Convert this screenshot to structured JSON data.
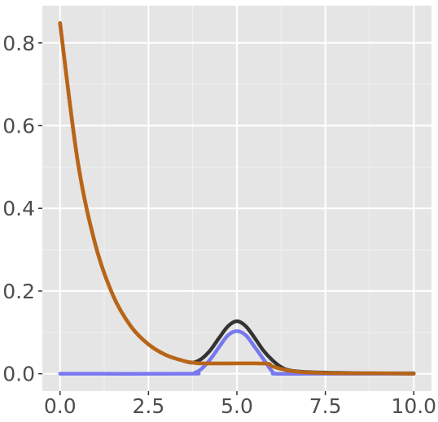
{
  "chart_data": {
    "type": "line",
    "title": "",
    "xlabel": "",
    "ylabel": "",
    "xlim": [
      -0.5,
      10.5
    ],
    "ylim": [
      -0.042,
      0.89
    ],
    "x_ticks": [
      0.0,
      2.5,
      5.0,
      7.5,
      10.0
    ],
    "x_tick_labels": [
      "0.0",
      "2.5",
      "5.0",
      "7.5",
      "10.0"
    ],
    "y_ticks": [
      0.0,
      0.2,
      0.4,
      0.6,
      0.8
    ],
    "y_tick_labels": [
      "0.0",
      "0.2",
      "0.4",
      "0.6",
      "0.8"
    ],
    "grid": true,
    "background": "#e5e5e5",
    "legend": "none",
    "series": [
      {
        "color": "#333333",
        "x": [
          0,
          0.5,
          1,
          1.5,
          2,
          2.5,
          3,
          3.5,
          3.75,
          4,
          4.25,
          4.5,
          4.75,
          5,
          5.25,
          5.5,
          5.75,
          6,
          6.25,
          6.5,
          7,
          8,
          9,
          10
        ],
        "y": [
          0.848,
          0.514,
          0.312,
          0.189,
          0.115,
          0.071,
          0.045,
          0.031,
          0.027,
          0.036,
          0.057,
          0.087,
          0.115,
          0.127,
          0.115,
          0.087,
          0.056,
          0.033,
          0.016,
          0.008,
          0.004,
          0.002,
          0.001,
          0.001
        ]
      },
      {
        "color": "#e8a040",
        "x": [
          0,
          0.5,
          1,
          1.5,
          2,
          2.5,
          3,
          3.5,
          3.75,
          4,
          5,
          5.5,
          5.9,
          6,
          6.5,
          7,
          8,
          9,
          10
        ],
        "y": [
          0.848,
          0.514,
          0.312,
          0.189,
          0.115,
          0.071,
          0.045,
          0.031,
          0.027,
          0.025,
          0.025,
          0.025,
          0.024,
          0.018,
          0.007,
          0.003,
          0.001,
          0.001,
          0.0
        ]
      },
      {
        "color": "#6e6ef0",
        "x": [
          0,
          3.6,
          3.8,
          4,
          4.25,
          4.5,
          4.75,
          5,
          5.25,
          5.5,
          5.75,
          6,
          6.1,
          7,
          8,
          10
        ],
        "y": [
          0.0,
          0.0,
          0.002,
          0.012,
          0.035,
          0.065,
          0.093,
          0.103,
          0.093,
          0.065,
          0.035,
          0.005,
          0.0,
          0.0,
          0.0,
          0.0
        ]
      },
      {
        "color": "#b86518",
        "x": [
          0,
          0.5,
          1,
          1.5,
          2,
          2.5,
          3,
          3.5,
          3.75,
          4,
          5,
          5.5,
          5.9,
          6,
          6.5,
          7,
          8,
          9,
          10
        ],
        "y": [
          0.848,
          0.514,
          0.312,
          0.189,
          0.115,
          0.071,
          0.045,
          0.031,
          0.027,
          0.025,
          0.025,
          0.025,
          0.024,
          0.018,
          0.007,
          0.003,
          0.001,
          0.001,
          0.0
        ]
      }
    ]
  }
}
